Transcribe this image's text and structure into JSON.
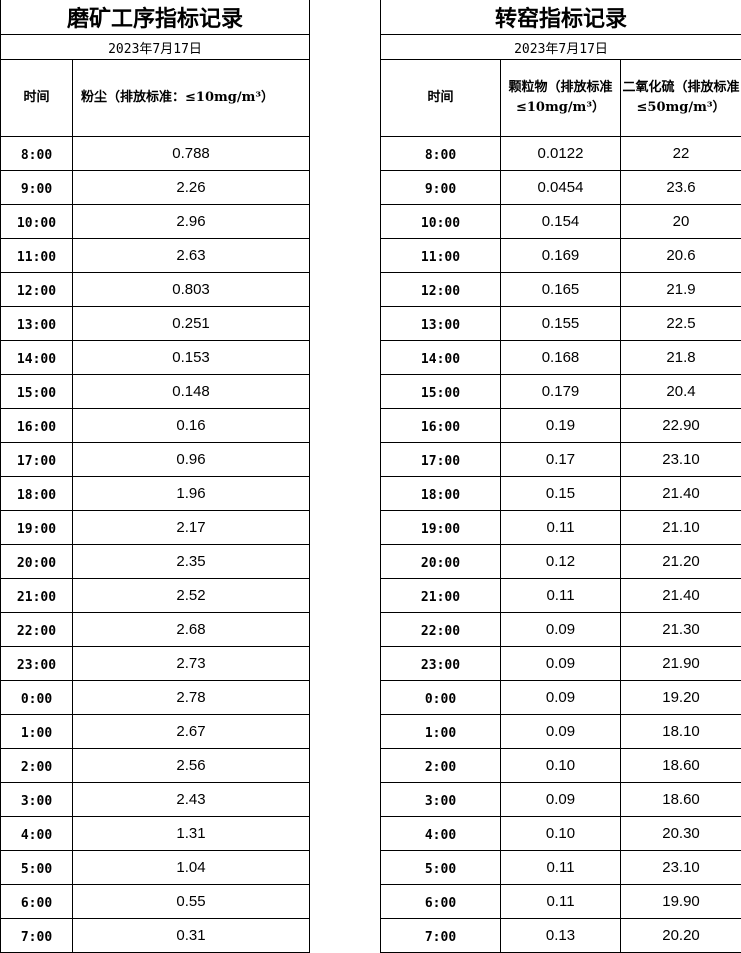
{
  "grinding": {
    "title": "磨矿工序指标记录",
    "date": "2023年7月17日",
    "headers": {
      "time": "时间",
      "dust": "粉尘（排放标准：≤10mg/m³）"
    },
    "rows": [
      [
        "8:00",
        "0.788"
      ],
      [
        "9:00",
        "2.26"
      ],
      [
        "10:00",
        "2.96"
      ],
      [
        "11:00",
        "2.63"
      ],
      [
        "12:00",
        "0.803"
      ],
      [
        "13:00",
        "0.251"
      ],
      [
        "14:00",
        "0.153"
      ],
      [
        "15:00",
        "0.148"
      ],
      [
        "16:00",
        "0.16"
      ],
      [
        "17:00",
        "0.96"
      ],
      [
        "18:00",
        "1.96"
      ],
      [
        "19:00",
        "2.17"
      ],
      [
        "20:00",
        "2.35"
      ],
      [
        "21:00",
        "2.52"
      ],
      [
        "22:00",
        "2.68"
      ],
      [
        "23:00",
        "2.73"
      ],
      [
        "0:00",
        "2.78"
      ],
      [
        "1:00",
        "2.67"
      ],
      [
        "2:00",
        "2.56"
      ],
      [
        "3:00",
        "2.43"
      ],
      [
        "4:00",
        "1.31"
      ],
      [
        "5:00",
        "1.04"
      ],
      [
        "6:00",
        "0.55"
      ],
      [
        "7:00",
        "0.31"
      ]
    ]
  },
  "kiln": {
    "title": "转窑指标记录",
    "date": "2023年7月17日",
    "headers": {
      "time": "时间",
      "particulate": "颗粒物（排放标准≤10mg/m³）",
      "so2": "二氧化硫（排放标准≤50mg/m³）"
    },
    "rows": [
      [
        "8:00",
        "0.0122",
        "22"
      ],
      [
        "9:00",
        "0.0454",
        "23.6"
      ],
      [
        "10:00",
        "0.154",
        "20"
      ],
      [
        "11:00",
        "0.169",
        "20.6"
      ],
      [
        "12:00",
        "0.165",
        "21.9"
      ],
      [
        "13:00",
        "0.155",
        "22.5"
      ],
      [
        "14:00",
        "0.168",
        "21.8"
      ],
      [
        "15:00",
        "0.179",
        "20.4"
      ],
      [
        "16:00",
        "0.19",
        "22.90"
      ],
      [
        "17:00",
        "0.17",
        "23.10"
      ],
      [
        "18:00",
        "0.15",
        "21.40"
      ],
      [
        "19:00",
        "0.11",
        "21.10"
      ],
      [
        "20:00",
        "0.12",
        "21.20"
      ],
      [
        "21:00",
        "0.11",
        "21.40"
      ],
      [
        "22:00",
        "0.09",
        "21.30"
      ],
      [
        "23:00",
        "0.09",
        "21.90"
      ],
      [
        "0:00",
        "0.09",
        "19.20"
      ],
      [
        "1:00",
        "0.09",
        "18.10"
      ],
      [
        "2:00",
        "0.10",
        "18.60"
      ],
      [
        "3:00",
        "0.09",
        "18.60"
      ],
      [
        "4:00",
        "0.10",
        "20.30"
      ],
      [
        "5:00",
        "0.11",
        "23.10"
      ],
      [
        "6:00",
        "0.11",
        "19.90"
      ],
      [
        "7:00",
        "0.13",
        "20.20"
      ]
    ]
  }
}
